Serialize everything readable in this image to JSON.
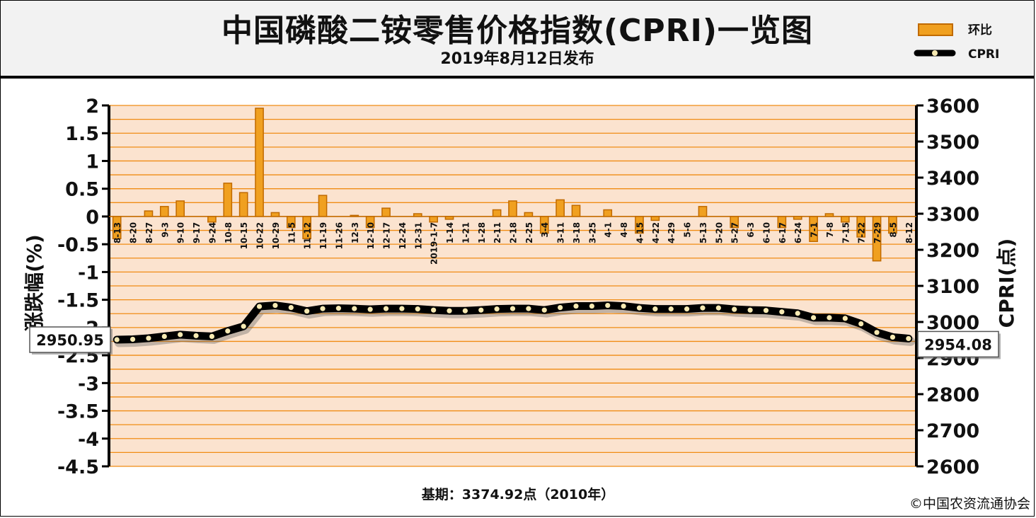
{
  "header": {
    "title": "中国磷酸二铵零售价格指数(CPRI)一览图",
    "subtitle": "2019年8月12日发布"
  },
  "legend": {
    "bar_label": "环比",
    "line_label": "CPRI"
  },
  "footer": {
    "base_period": "基期：3374.92点（2010年）",
    "copyright": "©中国农资流通协会"
  },
  "colors": {
    "bar": "#f0a020",
    "bar_edge": "#c06a00",
    "plot_bg": "#fbe3cf",
    "gridline": "#f08c14",
    "line": "#000000",
    "marker": "#f6e9b2"
  },
  "chart_data": {
    "type": "bar+line",
    "x": [
      "8-13",
      "8-20",
      "8-27",
      "9-3",
      "9-10",
      "9-17",
      "9-24",
      "10-8",
      "10-15",
      "10-22",
      "10-29",
      "11-5",
      "11-12",
      "11-19",
      "11-26",
      "12-3",
      "12-10",
      "12-17",
      "12-24",
      "12-31",
      "2019-1-7",
      "1-14",
      "1-21",
      "1-28",
      "2-11",
      "2-18",
      "2-25",
      "3-4",
      "3-11",
      "3-18",
      "3-25",
      "4-1",
      "4-8",
      "4-15",
      "4-22",
      "4-29",
      "5-6",
      "5-13",
      "5-20",
      "5-27",
      "6-3",
      "6-10",
      "6-17",
      "6-24",
      "7-1",
      "7-8",
      "7-15",
      "7-22",
      "7-29",
      "8-5",
      "8-12"
    ],
    "series": [
      {
        "name": "环比",
        "axis": "left",
        "values": [
          -0.4,
          0,
          0.1,
          0.18,
          0.28,
          0,
          -0.1,
          0.6,
          0.43,
          1.95,
          0.07,
          -0.2,
          -0.4,
          0.38,
          0,
          0.02,
          -0.2,
          0.15,
          0,
          0.05,
          -0.1,
          -0.05,
          0,
          0,
          0.12,
          0.28,
          0.07,
          -0.3,
          0.3,
          0.2,
          0,
          0.12,
          0,
          -0.3,
          -0.07,
          0,
          0,
          0.18,
          0,
          -0.2,
          0,
          0,
          -0.2,
          -0.05,
          -0.45,
          0.05,
          -0.1,
          -0.37,
          -0.8,
          -0.3,
          0
        ]
      },
      {
        "name": "CPRI",
        "axis": "right",
        "values": [
          2950.95,
          2952,
          2955,
          2960,
          2965,
          2962,
          2960,
          2975,
          2988,
          3043,
          3046,
          3040,
          3030,
          3037,
          3038,
          3037,
          3035,
          3037,
          3037,
          3036,
          3033,
          3031,
          3031,
          3033,
          3036,
          3037,
          3037,
          3033,
          3040,
          3044,
          3044,
          3046,
          3044,
          3039,
          3036,
          3036,
          3036,
          3039,
          3039,
          3035,
          3033,
          3032,
          3028,
          3024,
          3012,
          3012,
          3010,
          2995,
          2971,
          2958,
          2954.08
        ]
      }
    ],
    "y_left": {
      "label": "涨跌幅(%)",
      "range": [
        -4.5,
        2
      ],
      "ticks": [
        "2",
        "1.5",
        "1",
        "0.5",
        "0",
        "-0.5",
        "-1",
        "-1.5",
        "-2",
        "-2.5",
        "-3",
        "-3.5",
        "-4",
        "-4.5"
      ]
    },
    "y_right": {
      "label": "CPRI(点)",
      "range": [
        2600,
        3600
      ],
      "ticks": [
        "3600",
        "3500",
        "3400",
        "3300",
        "3200",
        "3100",
        "3000",
        "2900",
        "2800",
        "2700",
        "2600"
      ]
    },
    "callouts": {
      "start": "2950.95",
      "end": "2954.08"
    },
    "grid": true,
    "legend_position": "top-right"
  }
}
